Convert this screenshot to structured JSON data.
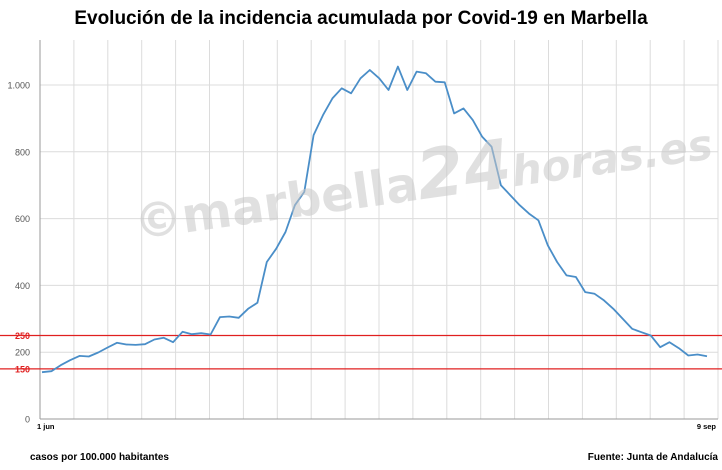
{
  "chart_data": {
    "type": "line",
    "title": "Evolución de la incidencia acumulada por Covid-19 en Marbella",
    "xlabel": "",
    "ylabel": "",
    "ylim": [
      0,
      1100
    ],
    "y_ticks": [
      {
        "value": 0,
        "label": "0"
      },
      {
        "value": 200,
        "label": "200"
      },
      {
        "value": 400,
        "label": "400"
      },
      {
        "value": 600,
        "label": "600"
      },
      {
        "value": 800,
        "label": "800"
      },
      {
        "value": 1000,
        "label": "1.000"
      }
    ],
    "x_labels": [
      {
        "index": 0,
        "label": "1 jun"
      },
      {
        "index": 99,
        "label": "9 sep"
      }
    ],
    "reference_lines": [
      {
        "value": 250,
        "label": "250",
        "color": "#e02020"
      },
      {
        "value": 150,
        "label": "150",
        "color": "#e02020"
      }
    ],
    "series": [
      {
        "color": "#4a8ec8",
        "values": [
          140,
          143,
          161,
          176,
          189,
          187,
          199,
          214,
          228,
          223,
          222,
          224,
          238,
          243,
          230,
          261,
          254,
          257,
          253,
          305,
          307,
          303,
          330,
          348,
          470,
          510,
          560,
          640,
          680,
          850,
          910,
          960,
          990,
          975,
          1020,
          1045,
          1020,
          985,
          1055,
          985,
          1040,
          1035,
          1010,
          1008,
          915,
          930,
          895,
          845,
          815,
          700,
          670,
          640,
          615,
          595,
          520,
          470,
          430,
          425,
          380,
          375,
          355,
          330,
          300,
          270,
          260,
          250,
          215,
          230,
          212,
          190,
          193,
          188
        ]
      }
    ]
  },
  "footer": {
    "left": "casos por 100.000 habitantes",
    "right": "Fuente: Junta de Andalucía"
  },
  "watermark": {
    "part1": "©marbella",
    "part2": "24",
    "part3": "horas.es"
  },
  "colors": {
    "line": "#4a8ec8",
    "threshold": "#e02020",
    "grid": "#dcdcdc"
  }
}
